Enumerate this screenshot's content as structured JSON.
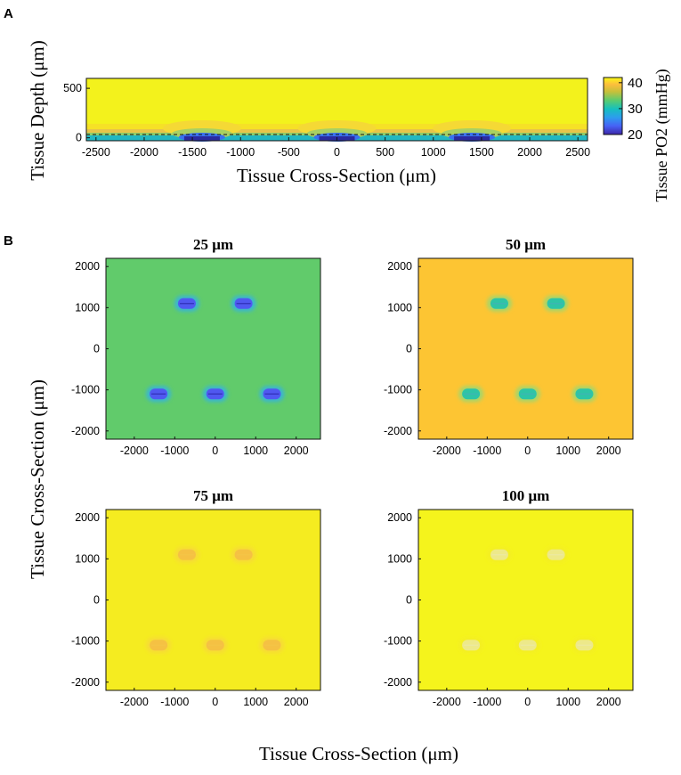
{
  "panels": {
    "a_letter": "A",
    "b_letter": "B"
  },
  "colors": {
    "yellow": "#f3f21c",
    "panel_25": "#61cb6b",
    "panel_50": "#fdc533",
    "panel_75": "#f5ec20",
    "panel_100": "#f5f41c"
  },
  "chart_data": [
    {
      "id": "A",
      "type": "heatmap",
      "title": "",
      "xlabel": "Tissue Cross-Section (μm)",
      "ylabel": "Tissue Depth (μm)",
      "xlim": [
        -2600,
        2600
      ],
      "ylim": [
        -30,
        600
      ],
      "xticks": [
        -2500,
        -2000,
        -1500,
        -1000,
        -500,
        0,
        500,
        1000,
        1500,
        2000,
        2500
      ],
      "yticks": [
        0,
        500
      ],
      "vessel_x": [
        -1400,
        0,
        1400
      ],
      "colorbar": {
        "label": "Tissue PO2 (mmHg)",
        "ticks": [
          20,
          30,
          40
        ],
        "range": [
          20,
          42
        ]
      }
    },
    {
      "id": "B",
      "type": "heatmap",
      "xlabel": "Tissue Cross-Section (μm)",
      "ylabel": "Tissue Cross-Section (μm)",
      "xlim": [
        -2700,
        2600
      ],
      "ylim": [
        -2200,
        2200
      ],
      "xticks": [
        -2000,
        -1000,
        0,
        1000,
        2000
      ],
      "yticks": [
        2000,
        1000,
        0,
        -1000,
        -2000
      ],
      "vessels": [
        [
          -700,
          1100
        ],
        [
          700,
          1100
        ],
        [
          -1400,
          -1100
        ],
        [
          0,
          -1100
        ],
        [
          1400,
          -1100
        ]
      ],
      "subplots": [
        {
          "title": "25 μm",
          "background": "#61cb6b",
          "halo": "#3bb6d0",
          "core": "#5058f0",
          "line": "#3030b8"
        },
        {
          "title": "50 μm",
          "background": "#fdc533",
          "halo": "#a5d66b",
          "core": "#2ec4a6",
          "line": "#3fb5b3"
        },
        {
          "title": "75 μm",
          "background": "#f5ec20",
          "halo": "#f7dc35",
          "core": "#f5c143",
          "line": "#f4c547"
        },
        {
          "title": "100 μm",
          "background": "#f5f41c",
          "halo": "#f4ef22",
          "core": "#ede98a",
          "line": "#ece9a0"
        }
      ]
    }
  ]
}
